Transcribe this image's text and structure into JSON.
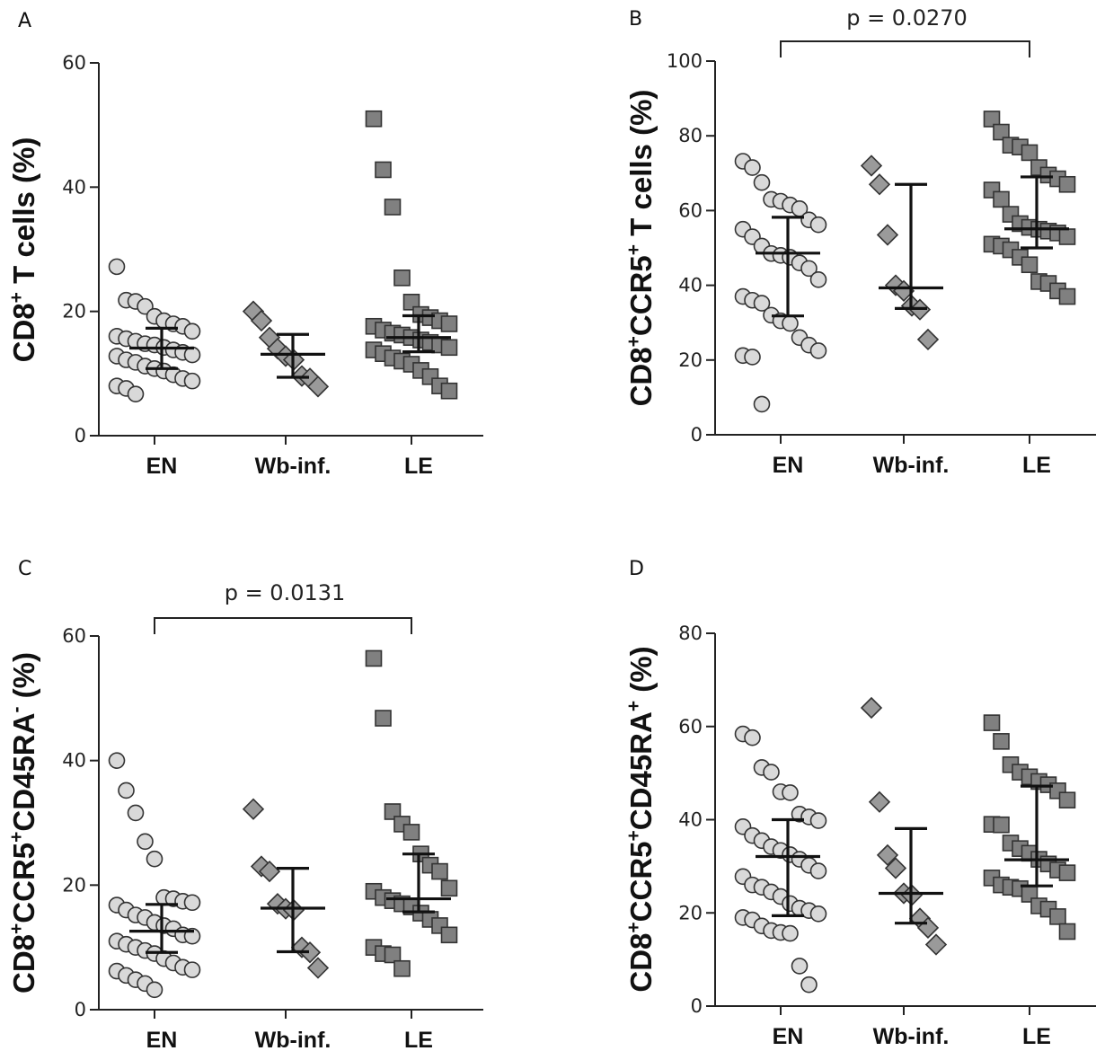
{
  "colors": {
    "EN": "#d9d9d9",
    "Wb-inf.": "#9a9a9a",
    "LE": "#808080",
    "axis": "#222222"
  },
  "chart_data": [
    {
      "panel": "A",
      "type": "scatter",
      "title": "",
      "ylabel": {
        "base": "CD8",
        "sup": "+",
        "rest": " T cells (%)"
      },
      "ylim": [
        0,
        60
      ],
      "yticks": [
        "0",
        "20",
        "40",
        "60"
      ],
      "categories": [
        "EN",
        "Wb-inf.",
        "LE"
      ],
      "markers": [
        "circle",
        "diamond",
        "square"
      ],
      "series": [
        {
          "name": "EN",
          "values": [
            27.2,
            21.8,
            21.6,
            20.8,
            19.2,
            18.5,
            18.0,
            17.6,
            16.8,
            16.0,
            15.6,
            15.2,
            14.8,
            14.6,
            14.2,
            13.8,
            13.4,
            13.0,
            12.8,
            12.2,
            11.8,
            11.2,
            10.8,
            10.4,
            9.8,
            9.2,
            8.8,
            8.0,
            7.6,
            6.7
          ],
          "median": 14.1,
          "q1": 10.8,
          "q3": 17.3
        },
        {
          "name": "Wb-inf.",
          "values": [
            20.0,
            18.5,
            15.8,
            14.0,
            12.8,
            12.2,
            9.6,
            9.2,
            7.9
          ],
          "median": 13.1,
          "q1": 9.4,
          "q3": 16.3
        },
        {
          "name": "LE",
          "values": [
            51.0,
            42.8,
            36.8,
            25.4,
            21.5,
            19.5,
            19.0,
            18.5,
            18.0,
            17.6,
            17.0,
            16.5,
            16.2,
            15.8,
            15.4,
            15.0,
            14.6,
            14.2,
            13.8,
            13.2,
            12.5,
            12.0,
            11.5,
            10.5,
            9.5,
            8.0,
            7.2
          ],
          "median": 15.8,
          "q1": 13.5,
          "q3": 19.3
        }
      ]
    },
    {
      "panel": "B",
      "type": "scatter",
      "title": "",
      "ylabel": {
        "base": "CD8",
        "sup": "+",
        "mid": "CCR5",
        "sup2": "+",
        "rest": " T cells (%)"
      },
      "ylim": [
        0,
        100
      ],
      "yticks": [
        "0",
        "20",
        "40",
        "60",
        "80",
        "100"
      ],
      "categories": [
        "EN",
        "Wb-inf.",
        "LE"
      ],
      "markers": [
        "circle",
        "diamond",
        "square"
      ],
      "series": [
        {
          "name": "EN",
          "values": [
            73.2,
            71.5,
            67.5,
            63.0,
            62.5,
            61.5,
            60.5,
            57.5,
            56.2,
            55.0,
            53.0,
            50.5,
            48.5,
            48.0,
            47.5,
            46.0,
            44.5,
            41.5,
            37.0,
            36.0,
            35.2,
            32.0,
            30.5,
            29.8,
            26.0,
            24.0,
            22.5,
            21.2,
            20.8,
            8.2
          ],
          "median": 48.6,
          "q1": 31.8,
          "q3": 58.2
        },
        {
          "name": "Wb-inf.",
          "values": [
            72.0,
            67.0,
            53.5,
            40.0,
            38.5,
            34.5,
            33.5,
            25.5
          ],
          "median": 39.3,
          "q1": 33.8,
          "q3": 67.0
        },
        {
          "name": "LE",
          "values": [
            84.5,
            81.0,
            77.5,
            77.0,
            75.5,
            71.5,
            69.5,
            68.5,
            67.0,
            65.5,
            63.0,
            59.0,
            56.5,
            55.5,
            55.0,
            54.5,
            54.0,
            53.0,
            51.0,
            50.5,
            49.5,
            47.5,
            45.5,
            41.0,
            40.5,
            38.5,
            37.0
          ],
          "median": 55.1,
          "q1": 50.0,
          "q3": 69.0
        }
      ],
      "annotation": {
        "text": "p = 0.0270",
        "from": "EN",
        "to": "LE"
      }
    },
    {
      "panel": "C",
      "type": "scatter",
      "title": "",
      "ylabel": {
        "base": "CD8",
        "sup": "+",
        "mid": "CCR5",
        "sup2": "+",
        "mid2": "CD45RA",
        "sup3": "-",
        "rest": " (%)"
      },
      "ylim": [
        0,
        60
      ],
      "yticks": [
        "0",
        "20",
        "40",
        "60"
      ],
      "categories": [
        "EN",
        "Wb-inf.",
        "LE"
      ],
      "markers": [
        "circle",
        "diamond",
        "square"
      ],
      "series": [
        {
          "name": "EN",
          "values": [
            40.0,
            35.2,
            31.6,
            27.0,
            24.2,
            18.0,
            17.8,
            17.4,
            17.2,
            16.8,
            16.0,
            15.2,
            14.8,
            14.0,
            13.5,
            13.0,
            12.0,
            11.8,
            11.0,
            10.5,
            10.0,
            9.5,
            9.0,
            8.2,
            7.5,
            6.8,
            6.4,
            6.2,
            5.5,
            4.8,
            4.2,
            3.2
          ],
          "median": 12.6,
          "q1": 9.2,
          "q3": 16.9
        },
        {
          "name": "Wb-inf.",
          "values": [
            32.2,
            23.0,
            22.2,
            17.0,
            16.2,
            16.0,
            10.0,
            9.2,
            6.7
          ],
          "median": 16.3,
          "q1": 9.3,
          "q3": 22.7
        },
        {
          "name": "LE",
          "values": [
            56.4,
            46.8,
            31.8,
            29.8,
            28.5,
            25.0,
            23.2,
            22.2,
            19.5,
            19.0,
            18.0,
            17.5,
            17.0,
            16.5,
            15.5,
            14.5,
            13.5,
            12.0,
            10.0,
            9.0,
            8.8,
            6.6
          ],
          "median": 17.8,
          "q1": 15.7,
          "q3": 25.0
        }
      ],
      "annotation": {
        "text": "p = 0.0131",
        "from": "EN",
        "to": "LE"
      }
    },
    {
      "panel": "D",
      "type": "scatter",
      "title": "",
      "ylabel": {
        "base": "CD8",
        "sup": "+",
        "mid": "CCR5",
        "sup2": "+",
        "mid2": "CD45RA",
        "sup3": "+",
        "rest": " (%)"
      },
      "ylim": [
        0,
        80
      ],
      "yticks": [
        "0",
        "20",
        "40",
        "60",
        "80"
      ],
      "categories": [
        "EN",
        "Wb-inf.",
        "LE"
      ],
      "markers": [
        "circle",
        "diamond",
        "square"
      ],
      "series": [
        {
          "name": "EN",
          "values": [
            58.4,
            57.6,
            51.2,
            50.2,
            46.0,
            45.8,
            41.2,
            40.6,
            39.8,
            38.5,
            36.6,
            35.5,
            34.2,
            33.4,
            32.5,
            31.5,
            30.2,
            29.0,
            27.8,
            26.0,
            25.5,
            24.5,
            23.5,
            22.0,
            21.0,
            20.5,
            19.8,
            19.0,
            18.5,
            17.2,
            16.2,
            15.8,
            15.6,
            8.6,
            4.6
          ],
          "median": 32.1,
          "q1": 19.4,
          "q3": 40.0
        },
        {
          "name": "Wb-inf.",
          "values": [
            64.0,
            43.8,
            32.4,
            29.6,
            24.2,
            23.8,
            18.8,
            16.8,
            13.2
          ],
          "median": 24.2,
          "q1": 17.8,
          "q3": 38.1
        },
        {
          "name": "LE",
          "values": [
            60.8,
            56.8,
            51.8,
            50.2,
            49.2,
            48.2,
            47.5,
            46.2,
            44.2,
            39.0,
            38.9,
            35.0,
            33.8,
            32.8,
            31.5,
            30.5,
            29.2,
            28.6,
            27.5,
            26.0,
            25.5,
            25.2,
            24.0,
            21.5,
            20.8,
            19.2,
            16.0
          ],
          "median": 31.4,
          "q1": 25.8,
          "q3": 47.2
        }
      ]
    }
  ]
}
